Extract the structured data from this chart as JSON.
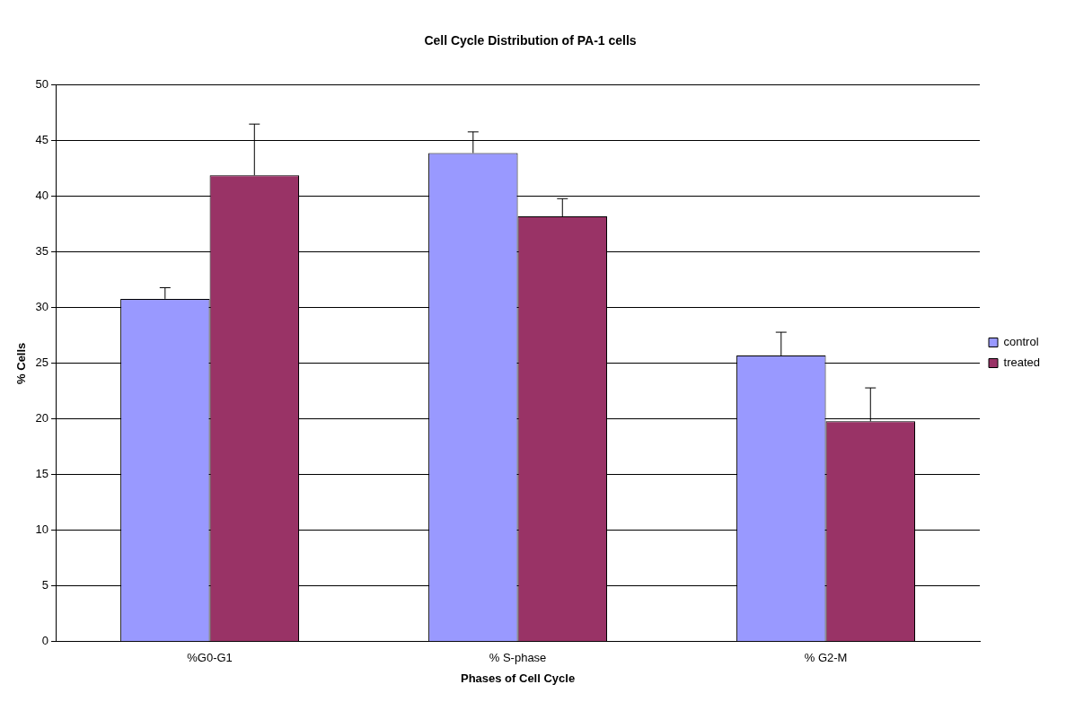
{
  "chart_data": {
    "type": "bar",
    "title": "Cell Cycle Distribution of PA-1 cells",
    "xlabel": "Phases of Cell Cycle",
    "ylabel": "% Cells",
    "categories": [
      "%G0-G1",
      "% S-phase",
      "% G2-M"
    ],
    "series": [
      {
        "name": "control",
        "color": "#9999ff",
        "values": [
          30.8,
          43.9,
          25.7
        ],
        "errors": [
          [
            30.8,
            31.8
          ],
          [
            43.9,
            45.8
          ],
          [
            25.7,
            27.8
          ]
        ]
      },
      {
        "name": "treated",
        "color": "#993366",
        "values": [
          41.9,
          38.2,
          19.8
        ],
        "errors": [
          [
            41.9,
            46.5
          ],
          [
            38.2,
            39.8
          ],
          [
            19.8,
            22.8
          ]
        ]
      }
    ],
    "ylim": [
      0,
      50
    ],
    "yticks": [
      0,
      5,
      10,
      15,
      20,
      25,
      30,
      35,
      40,
      45,
      50
    ],
    "grid": "y",
    "legend": "right"
  }
}
